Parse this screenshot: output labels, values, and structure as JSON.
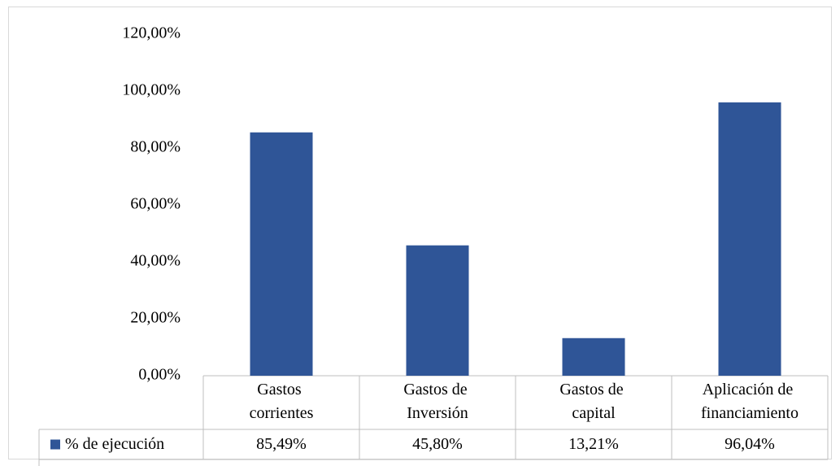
{
  "chart_data": {
    "type": "bar",
    "categories": [
      "Gastos corrientes",
      "Gastos de Inversión",
      "Gastos de capital",
      "Aplicación de financiamiento"
    ],
    "series": [
      {
        "name": "% de ejecución",
        "color": "#2f5597",
        "values": [
          85.49,
          45.8,
          13.21,
          96.04
        ],
        "value_labels": [
          "85,49%",
          "45,80%",
          "13,21%",
          "96,04%"
        ]
      }
    ],
    "ylim": [
      0,
      120
    ],
    "yticks": [
      {
        "value": 0,
        "label": "0,00%"
      },
      {
        "value": 20,
        "label": "20,00%"
      },
      {
        "value": 40,
        "label": "40,00%"
      },
      {
        "value": 60,
        "label": "60,00%"
      },
      {
        "value": 80,
        "label": "80,00%"
      },
      {
        "value": 100,
        "label": "100,00%"
      },
      {
        "value": 120,
        "label": "120,00%"
      }
    ],
    "grid": false
  }
}
